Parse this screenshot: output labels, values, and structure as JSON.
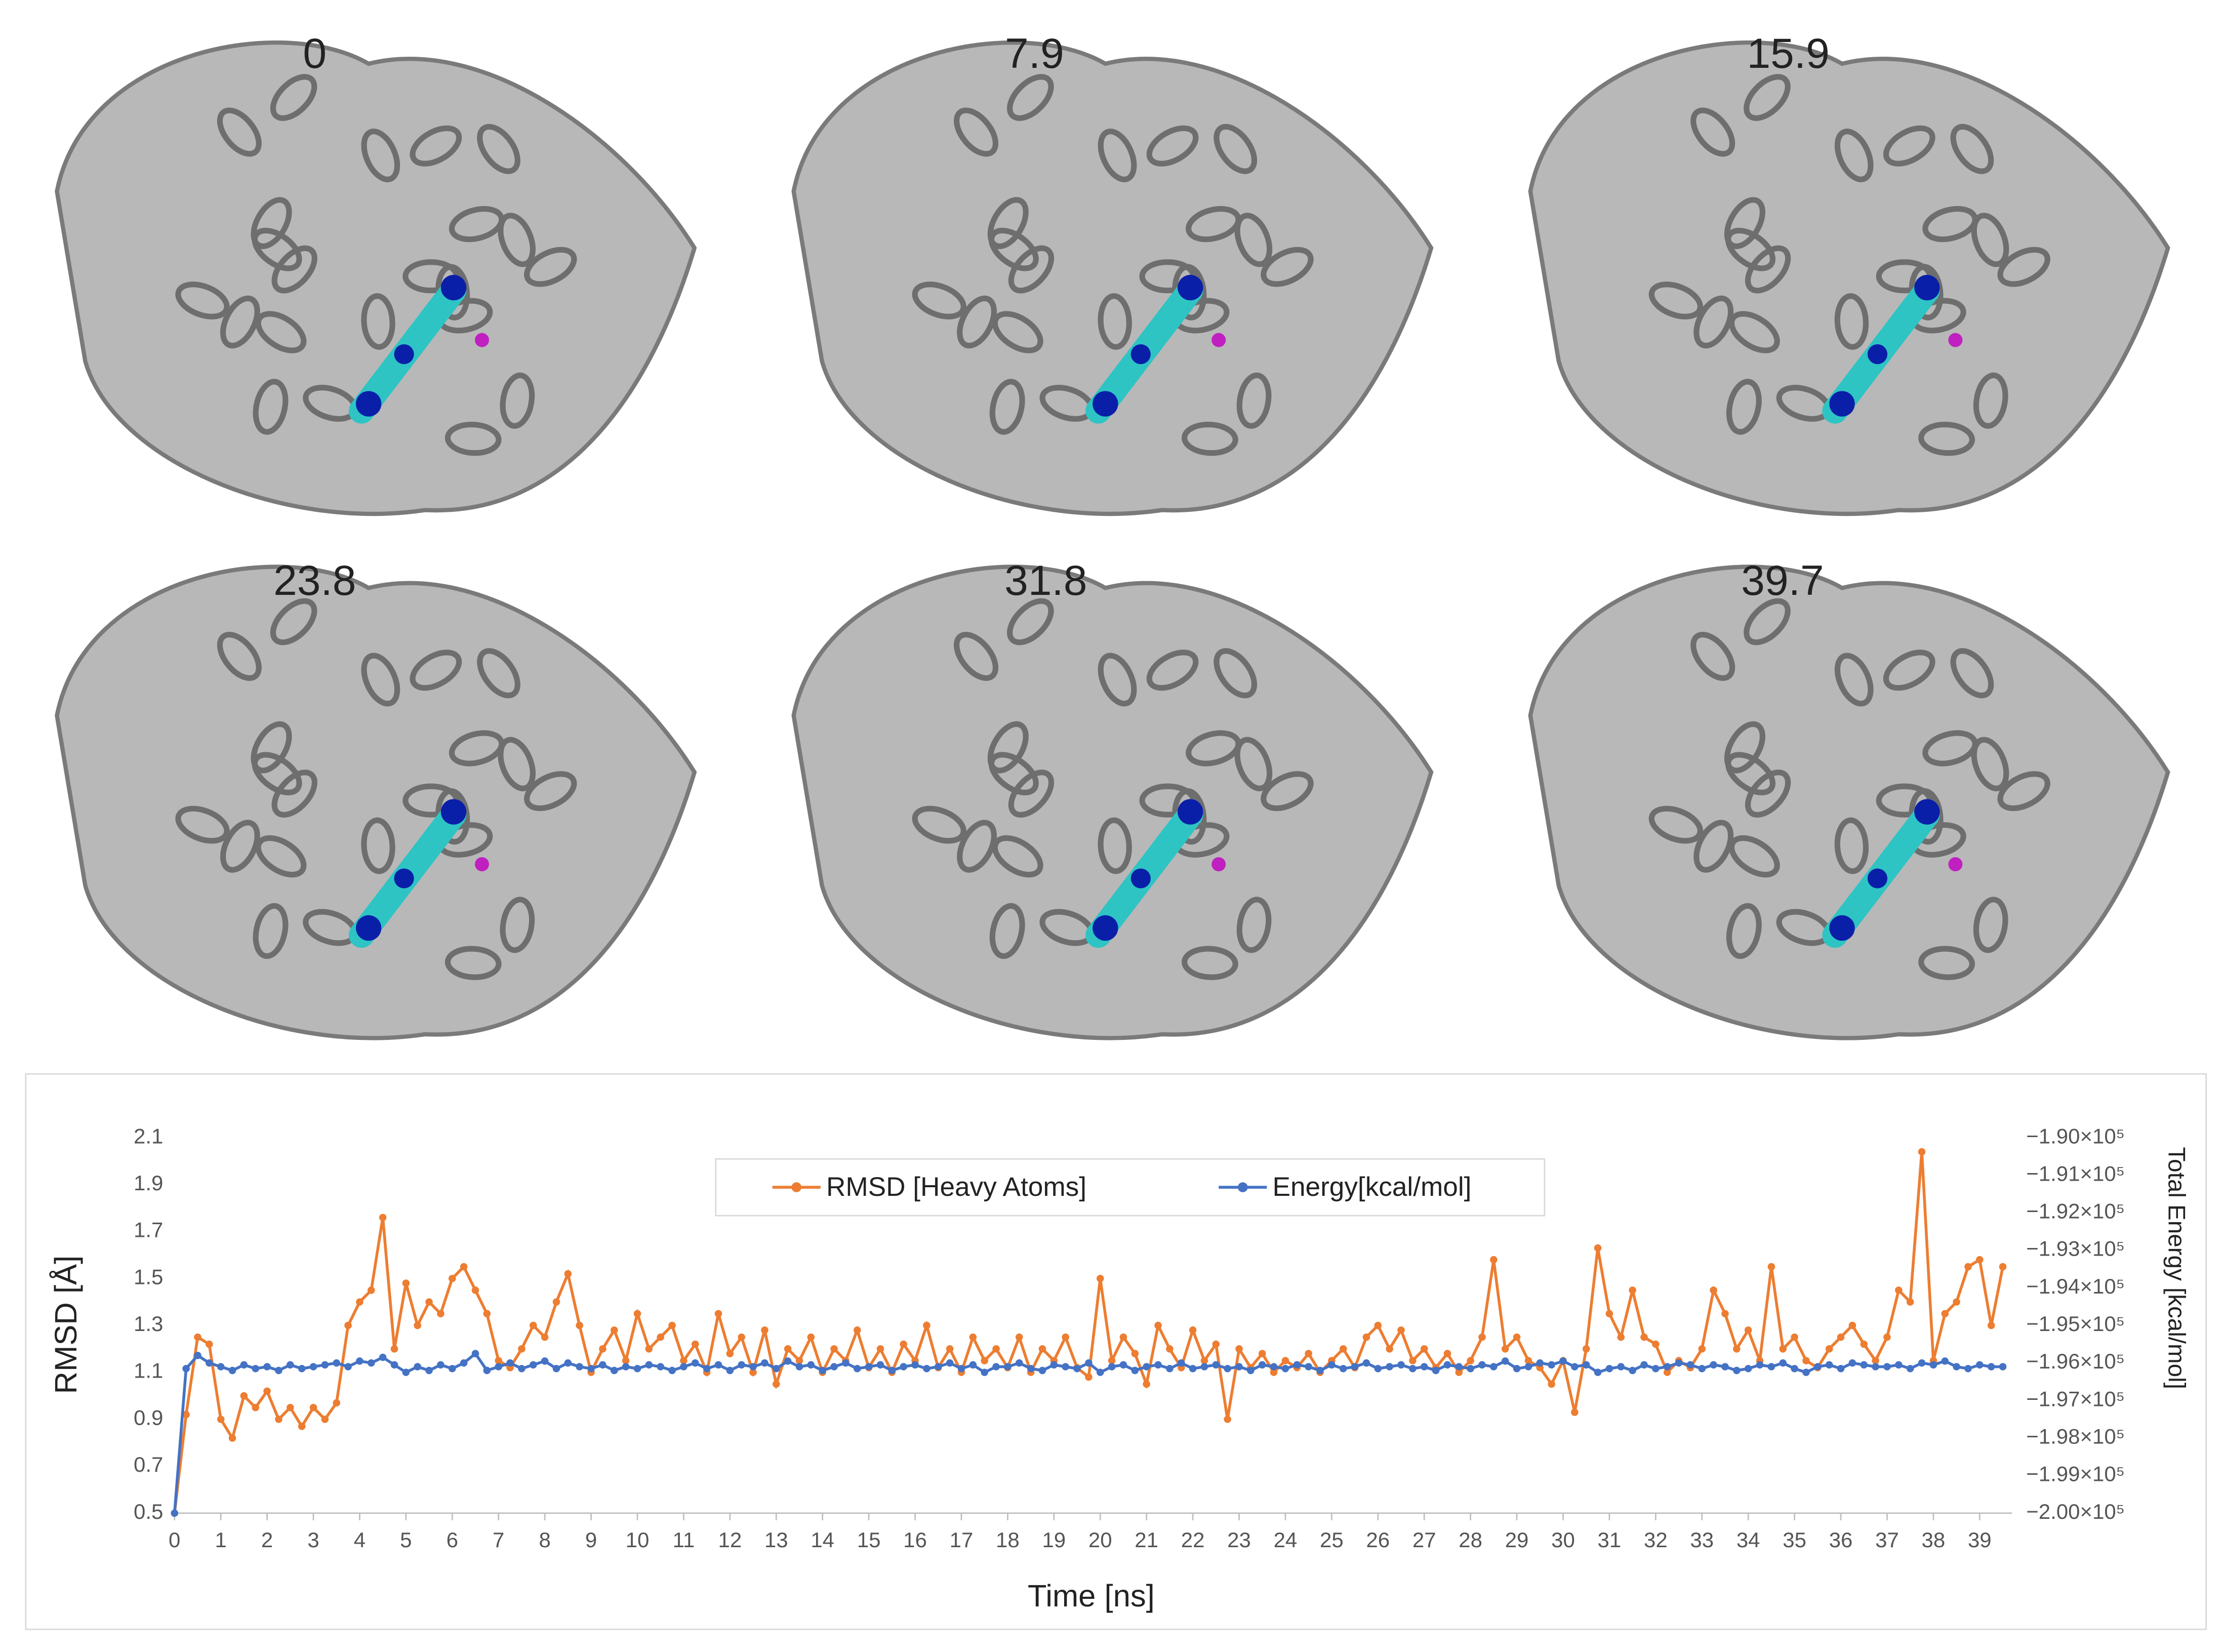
{
  "panels": [
    "0",
    "7.9",
    "15.9",
    "23.8",
    "31.8",
    "39.7"
  ],
  "chart_data": {
    "type": "line",
    "x_label": "Time [ns]",
    "y_label": "RMSD [Å]",
    "y2_label": "Total Energy [kcal/mol]",
    "xlim": [
      0,
      39.7
    ],
    "xticks": [
      0,
      1,
      2,
      3,
      4,
      5,
      6,
      7,
      8,
      9,
      10,
      11,
      12,
      13,
      14,
      15,
      16,
      17,
      18,
      19,
      20,
      21,
      22,
      23,
      24,
      25,
      26,
      27,
      28,
      29,
      30,
      31,
      32,
      33,
      34,
      35,
      36,
      37,
      38,
      39
    ],
    "ylim": [
      0.5,
      2.1
    ],
    "yticks": [
      0.5,
      0.7,
      0.9,
      1.1,
      1.3,
      1.5,
      1.7,
      1.9,
      2.1
    ],
    "y2lim": [
      -200000,
      -190000
    ],
    "y2ticks": [
      {
        "value": -200000,
        "label": "−2.00×10⁵"
      },
      {
        "value": -199000,
        "label": "−1.99×10⁵"
      },
      {
        "value": -198000,
        "label": "−1.98×10⁵"
      },
      {
        "value": -197000,
        "label": "−1.97×10⁵"
      },
      {
        "value": -196000,
        "label": "−1.96×10⁵"
      },
      {
        "value": -195000,
        "label": "−1.95×10⁵"
      },
      {
        "value": -194000,
        "label": "−1.94×10⁵"
      },
      {
        "value": -193000,
        "label": "−1.93×10⁵"
      },
      {
        "value": -192000,
        "label": "−1.92×10⁵"
      },
      {
        "value": -191000,
        "label": "−1.91×10⁵"
      },
      {
        "value": -190000,
        "label": "−1.90×10⁵"
      }
    ],
    "legend": "top",
    "x": [
      0,
      0.25,
      0.5,
      0.75,
      1,
      1.25,
      1.5,
      1.75,
      2,
      2.25,
      2.5,
      2.75,
      3,
      3.25,
      3.5,
      3.75,
      4,
      4.25,
      4.5,
      4.75,
      5,
      5.25,
      5.5,
      5.75,
      6,
      6.25,
      6.5,
      6.75,
      7,
      7.25,
      7.5,
      7.75,
      8,
      8.25,
      8.5,
      8.75,
      9,
      9.25,
      9.5,
      9.75,
      10,
      10.25,
      10.5,
      10.75,
      11,
      11.25,
      11.5,
      11.75,
      12,
      12.25,
      12.5,
      12.75,
      13,
      13.25,
      13.5,
      13.75,
      14,
      14.25,
      14.5,
      14.75,
      15,
      15.25,
      15.5,
      15.75,
      16,
      16.25,
      16.5,
      16.75,
      17,
      17.25,
      17.5,
      17.75,
      18,
      18.25,
      18.5,
      18.75,
      19,
      19.25,
      19.5,
      19.75,
      20,
      20.25,
      20.5,
      20.75,
      21,
      21.25,
      21.5,
      21.75,
      22,
      22.25,
      22.5,
      22.75,
      23,
      23.25,
      23.5,
      23.75,
      24,
      24.25,
      24.5,
      24.75,
      25,
      25.25,
      25.5,
      25.75,
      26,
      26.25,
      26.5,
      26.75,
      27,
      27.25,
      27.5,
      27.75,
      28,
      28.25,
      28.5,
      28.75,
      29,
      29.25,
      29.5,
      29.75,
      30,
      30.25,
      30.5,
      30.75,
      31,
      31.25,
      31.5,
      31.75,
      32,
      32.25,
      32.5,
      32.75,
      33,
      33.25,
      33.5,
      33.75,
      34,
      34.25,
      34.5,
      34.75,
      35,
      35.25,
      35.5,
      35.75,
      36,
      36.25,
      36.5,
      36.75,
      37,
      37.25,
      37.5,
      37.75,
      38,
      38.25,
      38.5,
      38.75,
      39,
      39.25,
      39.5
    ],
    "series": [
      {
        "name": "RMSD [Heavy Atoms]",
        "color": "#ed7d31",
        "values": [
          0.5,
          0.92,
          1.25,
          1.22,
          0.9,
          0.82,
          1.0,
          0.95,
          1.02,
          0.9,
          0.95,
          0.87,
          0.95,
          0.9,
          0.97,
          1.3,
          1.4,
          1.45,
          1.76,
          1.2,
          1.48,
          1.3,
          1.4,
          1.35,
          1.5,
          1.55,
          1.45,
          1.35,
          1.15,
          1.12,
          1.2,
          1.3,
          1.25,
          1.4,
          1.52,
          1.3,
          1.1,
          1.2,
          1.28,
          1.15,
          1.35,
          1.2,
          1.25,
          1.3,
          1.15,
          1.22,
          1.1,
          1.35,
          1.18,
          1.25,
          1.1,
          1.28,
          1.05,
          1.2,
          1.15,
          1.25,
          1.1,
          1.2,
          1.15,
          1.28,
          1.12,
          1.2,
          1.1,
          1.22,
          1.15,
          1.3,
          1.12,
          1.2,
          1.1,
          1.25,
          1.15,
          1.2,
          1.12,
          1.25,
          1.1,
          1.2,
          1.15,
          1.25,
          1.12,
          1.08,
          1.5,
          1.15,
          1.25,
          1.18,
          1.05,
          1.3,
          1.2,
          1.12,
          1.28,
          1.15,
          1.22,
          0.9,
          1.2,
          1.12,
          1.18,
          1.1,
          1.15,
          1.12,
          1.18,
          1.1,
          1.15,
          1.2,
          1.12,
          1.25,
          1.3,
          1.2,
          1.28,
          1.15,
          1.2,
          1.12,
          1.18,
          1.1,
          1.15,
          1.25,
          1.58,
          1.2,
          1.25,
          1.15,
          1.12,
          1.05,
          1.15,
          0.93,
          1.2,
          1.63,
          1.35,
          1.25,
          1.45,
          1.25,
          1.22,
          1.1,
          1.15,
          1.12,
          1.2,
          1.45,
          1.35,
          1.2,
          1.28,
          1.15,
          1.55,
          1.2,
          1.25,
          1.15,
          1.12,
          1.2,
          1.25,
          1.3,
          1.22,
          1.15,
          1.25,
          1.45,
          1.4,
          2.04,
          1.15,
          1.35,
          1.4,
          1.55,
          1.58,
          1.3,
          1.55
        ]
      },
      {
        "name": "Energy[kcal/mol]",
        "color": "#4472c4",
        "axis": "y2",
        "values": [
          -200000,
          -196150,
          -195800,
          -196000,
          -196100,
          -196200,
          -196050,
          -196150,
          -196100,
          -196200,
          -196050,
          -196150,
          -196100,
          -196050,
          -196000,
          -196100,
          -195950,
          -196000,
          -195850,
          -196050,
          -196250,
          -196100,
          -196200,
          -196050,
          -196150,
          -196000,
          -195750,
          -196200,
          -196100,
          -196000,
          -196150,
          -196050,
          -195950,
          -196150,
          -196000,
          -196100,
          -196150,
          -196050,
          -196200,
          -196100,
          -196150,
          -196050,
          -196100,
          -196200,
          -196100,
          -196000,
          -196150,
          -196050,
          -196200,
          -196050,
          -196100,
          -196000,
          -196150,
          -195950,
          -196100,
          -196050,
          -196200,
          -196100,
          -196000,
          -196150,
          -196100,
          -196050,
          -196200,
          -196100,
          -196050,
          -196150,
          -196100,
          -196000,
          -196150,
          -196050,
          -196250,
          -196100,
          -196100,
          -196000,
          -196150,
          -196200,
          -196050,
          -196100,
          -196150,
          -196000,
          -196250,
          -196100,
          -196050,
          -196200,
          -196100,
          -196050,
          -196150,
          -196000,
          -196150,
          -196100,
          -196050,
          -196150,
          -196100,
          -196200,
          -196050,
          -196100,
          -196150,
          -196050,
          -196100,
          -196200,
          -196050,
          -196150,
          -196100,
          -196000,
          -196150,
          -196100,
          -196050,
          -196150,
          -196100,
          -196200,
          -196050,
          -196100,
          -196150,
          -196050,
          -196100,
          -195950,
          -196150,
          -196100,
          -196000,
          -196050,
          -195950,
          -196100,
          -196050,
          -196250,
          -196150,
          -196100,
          -196200,
          -196050,
          -196150,
          -196100,
          -196000,
          -196050,
          -196150,
          -196050,
          -196100,
          -196200,
          -196150,
          -196050,
          -196100,
          -196000,
          -196150,
          -196250,
          -196100,
          -196050,
          -196150,
          -196000,
          -196050,
          -196100,
          -196100,
          -196050,
          -196150,
          -196000,
          -196050,
          -195950,
          -196100,
          -196150,
          -196050,
          -196100,
          -196100
        ]
      }
    ]
  }
}
